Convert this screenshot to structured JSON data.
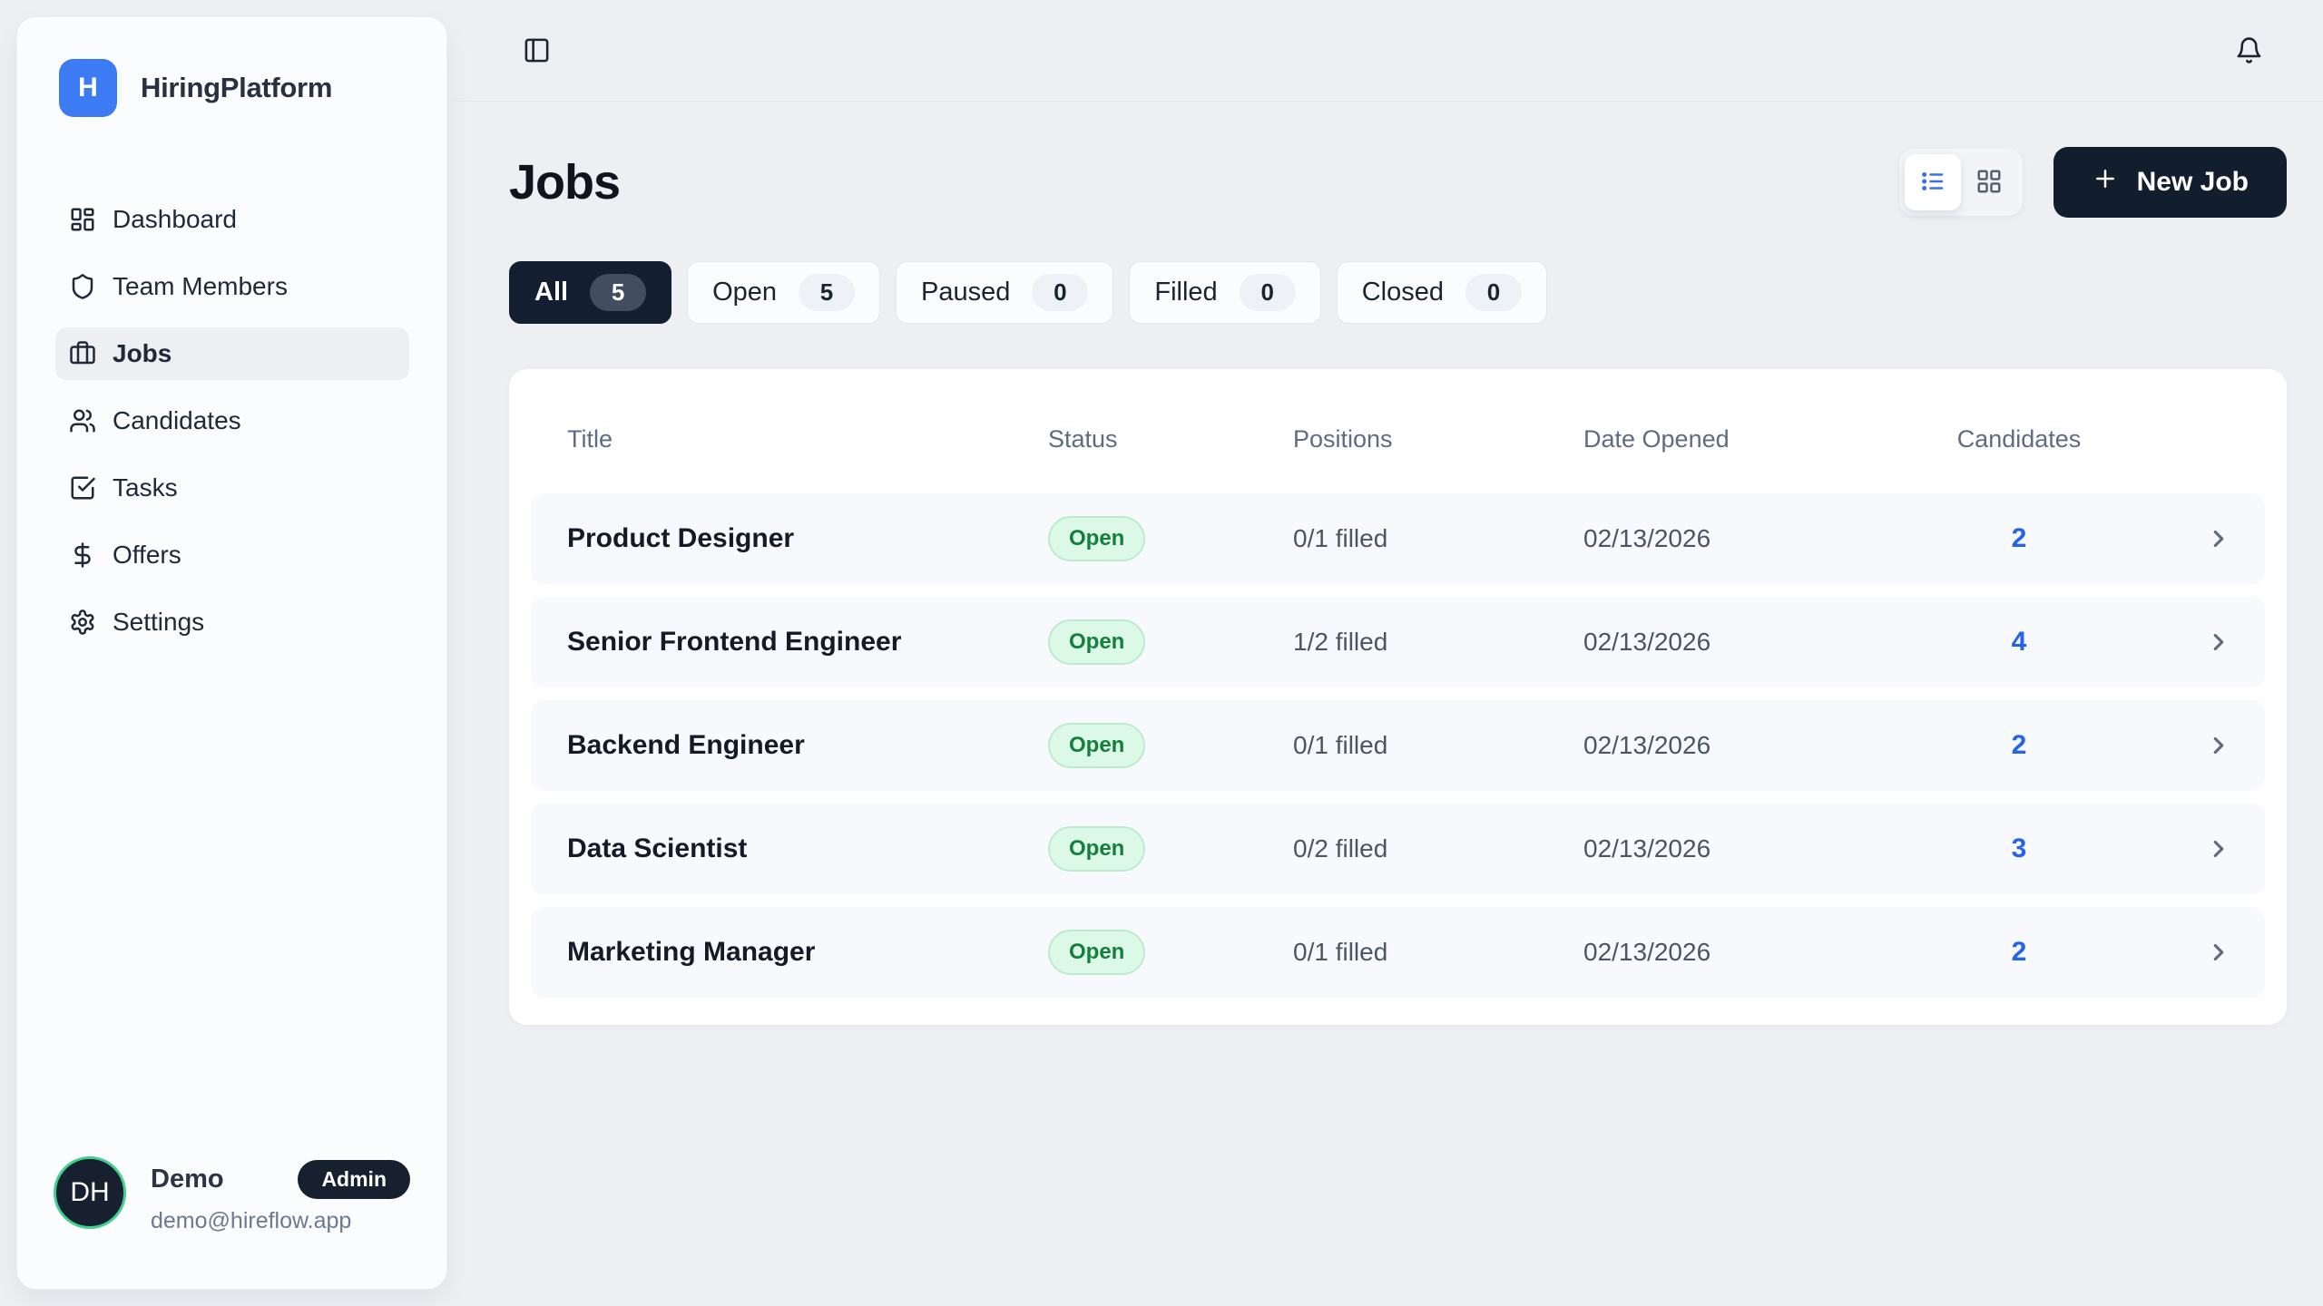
{
  "brand": {
    "initial": "H",
    "name": "HiringPlatform"
  },
  "sidebar": {
    "items": [
      {
        "label": "Dashboard",
        "icon": "dashboard-icon",
        "active": false
      },
      {
        "label": "Team Members",
        "icon": "shield-icon",
        "active": false
      },
      {
        "label": "Jobs",
        "icon": "briefcase-icon",
        "active": true
      },
      {
        "label": "Candidates",
        "icon": "users-icon",
        "active": false
      },
      {
        "label": "Tasks",
        "icon": "check-square-icon",
        "active": false
      },
      {
        "label": "Offers",
        "icon": "dollar-icon",
        "active": false
      },
      {
        "label": "Settings",
        "icon": "gear-icon",
        "active": false
      }
    ],
    "user": {
      "initials": "DH",
      "name": "Demo",
      "role_badge": "Admin",
      "email": "demo@hireflow.app"
    }
  },
  "header": {
    "title": "Jobs",
    "new_job_label": "New Job"
  },
  "filters": [
    {
      "label": "All",
      "count": "5",
      "active": true
    },
    {
      "label": "Open",
      "count": "5",
      "active": false
    },
    {
      "label": "Paused",
      "count": "0",
      "active": false
    },
    {
      "label": "Filled",
      "count": "0",
      "active": false
    },
    {
      "label": "Closed",
      "count": "0",
      "active": false
    }
  ],
  "table": {
    "columns": [
      "Title",
      "Status",
      "Positions",
      "Date Opened",
      "Candidates"
    ],
    "rows": [
      {
        "title": "Product Designer",
        "status": "Open",
        "positions": "0/1 filled",
        "date_opened": "02/13/2026",
        "candidates": "2"
      },
      {
        "title": "Senior Frontend Engineer",
        "status": "Open",
        "positions": "1/2 filled",
        "date_opened": "02/13/2026",
        "candidates": "4"
      },
      {
        "title": "Backend Engineer",
        "status": "Open",
        "positions": "0/1 filled",
        "date_opened": "02/13/2026",
        "candidates": "2"
      },
      {
        "title": "Data Scientist",
        "status": "Open",
        "positions": "0/2 filled",
        "date_opened": "02/13/2026",
        "candidates": "3"
      },
      {
        "title": "Marketing Manager",
        "status": "Open",
        "positions": "0/1 filled",
        "date_opened": "02/13/2026",
        "candidates": "2"
      }
    ]
  },
  "colors": {
    "page_bg": "#edeff3",
    "dark_navy": "#131e30",
    "logo_blue": "#3d7bf5",
    "accent_blue": "#2563eb",
    "open_badge_bg": "#dcf8e6",
    "open_badge_text": "#15803d",
    "avatar_ring": "#41cf8e"
  }
}
